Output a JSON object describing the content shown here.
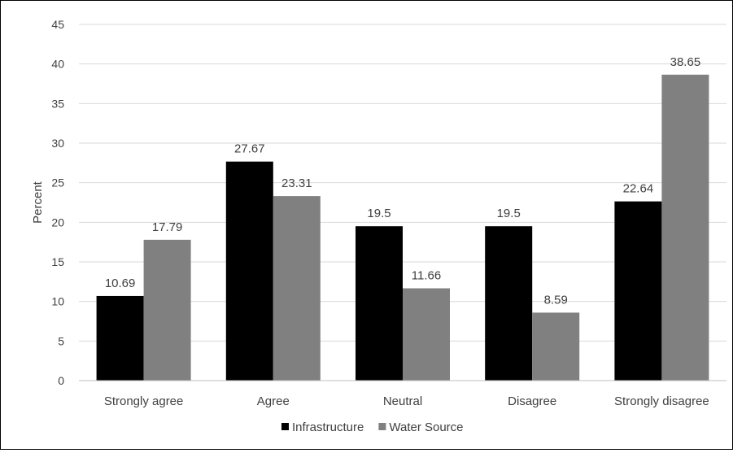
{
  "chart_data": {
    "type": "bar",
    "title": "",
    "xlabel": "",
    "ylabel": "Percent",
    "ylim": [
      0,
      45
    ],
    "ytick_step": 5,
    "yticks": [
      "0",
      "5",
      "10",
      "15",
      "20",
      "25",
      "30",
      "35",
      "40",
      "45"
    ],
    "grid": true,
    "legend_position": "bottom",
    "categories": [
      "Strongly agree",
      "Agree",
      "Neutral",
      "Disagree",
      "Strongly disagree"
    ],
    "series": [
      {
        "name": "Infrastructure",
        "color": "#000000",
        "values": [
          10.69,
          27.67,
          19.5,
          19.5,
          22.64
        ],
        "labels": [
          "10.69",
          "27.67",
          "19.5",
          "19.5",
          "22.64"
        ]
      },
      {
        "name": "Water Source",
        "color": "#808080",
        "values": [
          17.79,
          23.31,
          11.66,
          8.59,
          38.65
        ],
        "labels": [
          "17.79",
          "23.31",
          "11.66",
          "8.59",
          "38.65"
        ]
      }
    ]
  }
}
